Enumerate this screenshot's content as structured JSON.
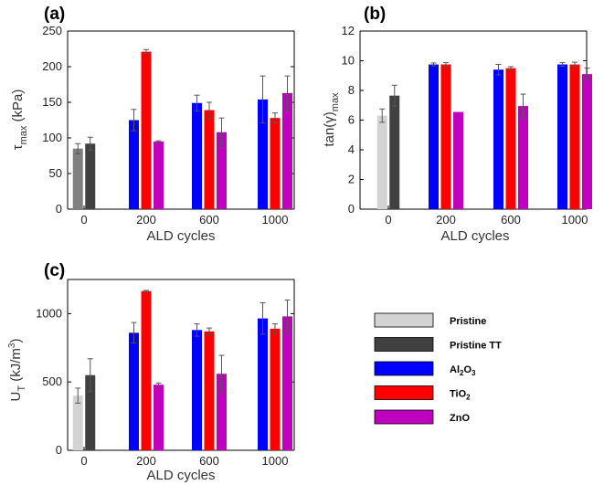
{
  "colors": {
    "Pristine": "#d3d3d3",
    "Pristine TT": "#404040",
    "Al2O3": "#0000ff",
    "TiO2": "#ff0000",
    "ZnO": "#bf00bf",
    "gray_a": "#808080"
  },
  "legend": {
    "items": [
      {
        "name": "Pristine",
        "text": "Pristine",
        "sub": ""
      },
      {
        "name": "Pristine TT",
        "text": "Pristine TT",
        "sub": ""
      },
      {
        "name": "Al2O3",
        "text": "Al",
        "sub": "2",
        "text2": "O",
        "sub2": "3"
      },
      {
        "name": "TiO2",
        "text": "TiO",
        "sub": "2",
        "text2": "",
        "sub2": ""
      },
      {
        "name": "ZnO",
        "text": "ZnO",
        "sub": "",
        "text2": "",
        "sub2": ""
      }
    ]
  },
  "chart_data": [
    {
      "panel": "(a)",
      "type": "bar",
      "ylabel_main": "τ",
      "ylabel_sub": "max",
      "ylabel_unit": " (kPa)",
      "xlabel": "ALD cycles",
      "categories": [
        "0",
        "200",
        "600",
        "1000"
      ],
      "ylim": [
        0,
        250
      ],
      "yticks": [
        0,
        50,
        100,
        150,
        200,
        250
      ],
      "groups": [
        {
          "category": "0",
          "bars": [
            {
              "series": "Pristine",
              "color_key": "gray_a",
              "value": 85,
              "err": 7
            },
            {
              "series": "Pristine TT",
              "value": 92,
              "err": 9
            }
          ]
        },
        {
          "category": "200",
          "bars": [
            {
              "series": "Al2O3",
              "value": 125,
              "err": 15
            },
            {
              "series": "TiO2",
              "value": 221,
              "err": 3
            },
            {
              "series": "ZnO",
              "value": 95,
              "err": 1
            }
          ]
        },
        {
          "category": "600",
          "bars": [
            {
              "series": "Al2O3",
              "value": 149,
              "err": 11
            },
            {
              "series": "TiO2",
              "value": 139,
              "err": 11
            },
            {
              "series": "ZnO",
              "value": 108,
              "err": 20
            }
          ]
        },
        {
          "category": "1000",
          "bars": [
            {
              "series": "Al2O3",
              "value": 154,
              "err": 33
            },
            {
              "series": "TiO2",
              "value": 128,
              "err": 7
            },
            {
              "series": "ZnO",
              "value": 163,
              "err": 24
            }
          ]
        }
      ]
    },
    {
      "panel": "(b)",
      "type": "bar",
      "ylabel_main": "tan(γ)",
      "ylabel_sub": "max",
      "ylabel_unit": "",
      "xlabel": "ALD cycles",
      "categories": [
        "0",
        "200",
        "600",
        "1000"
      ],
      "ylim": [
        0,
        12
      ],
      "yticks": [
        0,
        2,
        4,
        6,
        8,
        10,
        12
      ],
      "groups": [
        {
          "category": "0",
          "bars": [
            {
              "series": "Pristine",
              "value": 6.3,
              "err": 0.45
            },
            {
              "series": "Pristine TT",
              "value": 7.65,
              "err": 0.7
            }
          ]
        },
        {
          "category": "200",
          "bars": [
            {
              "series": "Al2O3",
              "value": 9.75,
              "err": 0.1
            },
            {
              "series": "TiO2",
              "value": 9.75,
              "err": 0.12
            },
            {
              "series": "ZnO",
              "value": 6.55,
              "err": 0
            }
          ]
        },
        {
          "category": "600",
          "bars": [
            {
              "series": "Al2O3",
              "value": 9.4,
              "err": 0.35
            },
            {
              "series": "TiO2",
              "value": 9.5,
              "err": 0.1
            },
            {
              "series": "ZnO",
              "value": 6.95,
              "err": 0.8
            }
          ]
        },
        {
          "category": "1000",
          "bars": [
            {
              "series": "Al2O3",
              "value": 9.75,
              "err": 0.12
            },
            {
              "series": "TiO2",
              "value": 9.75,
              "err": 0.15
            },
            {
              "series": "ZnO",
              "value": 9.1,
              "err": 0.4
            }
          ]
        }
      ]
    },
    {
      "panel": "(c)",
      "type": "bar",
      "ylabel_main": "U",
      "ylabel_sub": "T",
      "ylabel_unit": " (kJ/m",
      "ylabel_sup": "3",
      "ylabel_close": ")",
      "xlabel": "ALD cycles",
      "categories": [
        "0",
        "200",
        "600",
        "1000"
      ],
      "ylim": [
        0,
        1250
      ],
      "yticks": [
        0,
        500,
        1000
      ],
      "groups": [
        {
          "category": "0",
          "bars": [
            {
              "series": "Pristine",
              "value": 400,
              "err": 55
            },
            {
              "series": "Pristine TT",
              "value": 550,
              "err": 120
            }
          ]
        },
        {
          "category": "200",
          "bars": [
            {
              "series": "Al2O3",
              "value": 860,
              "err": 75
            },
            {
              "series": "TiO2",
              "value": 1165,
              "err": 5
            },
            {
              "series": "ZnO",
              "value": 480,
              "err": 12
            }
          ]
        },
        {
          "category": "600",
          "bars": [
            {
              "series": "Al2O3",
              "value": 880,
              "err": 45
            },
            {
              "series": "TiO2",
              "value": 870,
              "err": 25
            },
            {
              "series": "ZnO",
              "value": 560,
              "err": 135
            }
          ]
        },
        {
          "category": "1000",
          "bars": [
            {
              "series": "Al2O3",
              "value": 965,
              "err": 115
            },
            {
              "series": "TiO2",
              "value": 890,
              "err": 35
            },
            {
              "series": "ZnO",
              "value": 980,
              "err": 120
            }
          ]
        }
      ]
    }
  ]
}
